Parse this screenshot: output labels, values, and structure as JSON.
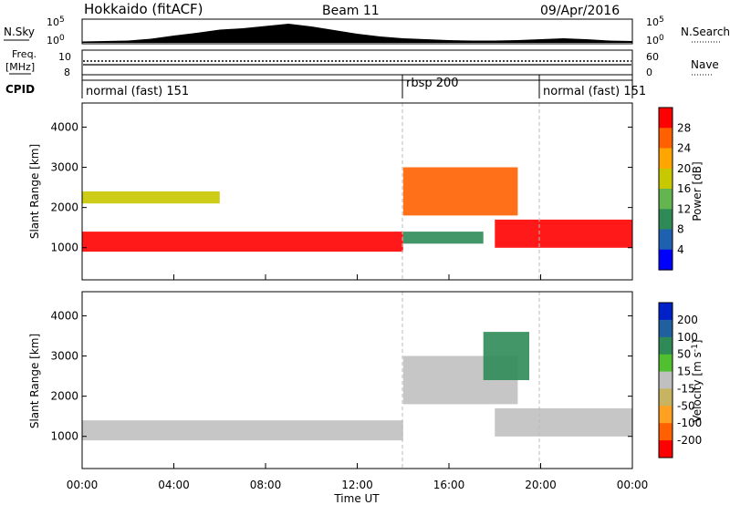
{
  "header": {
    "station": "Hokkaido (fitACF)",
    "beam": "Beam 11",
    "date": "09/Apr/2016"
  },
  "side_labels": {
    "nsky": "N.Sky",
    "freq_line1": "Freq.",
    "freq_line2": "[MHz]",
    "cpid": "CPID",
    "nsearch": "N.Search",
    "nave": "Nave"
  },
  "colors": {
    "power": [
      "#0000ff",
      "#2060b0",
      "#2e8b57",
      "#64b450",
      "#c8c800",
      "#ffa500",
      "#ff6000",
      "#ff0000"
    ],
    "velocity": [
      "#0020c8",
      "#2060a0",
      "#2e8b57",
      "#50c030",
      "#c0c0c0",
      "#c8b460",
      "#ffa020",
      "#ff6000",
      "#ff0000"
    ]
  },
  "chart_data": [
    {
      "type": "line",
      "panel": "nsky",
      "x_tick_labels": [
        "00:00",
        "04:00",
        "08:00",
        "12:00",
        "16:00",
        "20:00",
        "00:00"
      ],
      "xlim": [
        0,
        24
      ],
      "left_ticks": [
        "10^5",
        "10^0"
      ],
      "right_ticks": [
        "10^5",
        "10^0"
      ],
      "scale": "log",
      "values_log10": [
        0.3,
        0.4,
        0.5,
        0.9,
        1.6,
        2.2,
        2.9,
        3.2,
        3.7,
        4.2,
        3.6,
        2.8,
        2.0,
        1.4,
        1.0,
        0.8,
        0.6,
        0.5,
        0.5,
        0.6,
        0.8,
        1.0,
        0.8,
        0.5,
        0.4
      ]
    },
    {
      "type": "line",
      "panel": "frequency",
      "left_ticks": [
        "10",
        "8"
      ],
      "right_ticks": [
        "60",
        "0"
      ],
      "ylim_left": [
        8,
        10
      ],
      "ylim_right": [
        0,
        60
      ]
    },
    {
      "type": "table",
      "panel": "cpid",
      "segments": [
        {
          "label": "normal (fast) 151",
          "start_hour": 0,
          "end_hour": 14
        },
        {
          "label": "rbsp 200",
          "start_hour": 14,
          "end_hour": 20
        },
        {
          "label": "normal (fast) 151",
          "start_hour": 20,
          "end_hour": 24
        }
      ]
    },
    {
      "type": "heatmap",
      "panel": "power",
      "ylabel": "Slant Range [km]",
      "yticks": [
        "1000",
        "2000",
        "3000",
        "4000"
      ],
      "ylim": [
        200,
        4600
      ],
      "xlim": [
        0,
        24
      ],
      "colorbar_label": "Power [dB]",
      "colorbar_ticks": [
        "4",
        "8",
        "12",
        "16",
        "20",
        "24",
        "28"
      ],
      "colorbar_range": [
        0,
        32
      ],
      "features": [
        {
          "start_hour": 0,
          "end_hour": 14,
          "range_km": [
            900,
            1400
          ],
          "level_db": 28
        },
        {
          "start_hour": 0,
          "end_hour": 6,
          "range_km": [
            2100,
            2400
          ],
          "level_db": 16
        },
        {
          "start_hour": 14,
          "end_hour": 19,
          "range_km": [
            1800,
            3000
          ],
          "level_db": 26
        },
        {
          "start_hour": 14,
          "end_hour": 17.5,
          "range_km": [
            1100,
            1400
          ],
          "level_db": 8
        },
        {
          "start_hour": 18,
          "end_hour": 24,
          "range_km": [
            1000,
            1700
          ],
          "level_db": 28
        }
      ]
    },
    {
      "type": "heatmap",
      "panel": "velocity",
      "ylabel": "Slant Range [km]",
      "yticks": [
        "1000",
        "2000",
        "3000",
        "4000"
      ],
      "ylim": [
        200,
        4600
      ],
      "xlabel": "Time UT",
      "colorbar_label": "Velocity [m s^-1]",
      "colorbar_ticks": [
        "200",
        "100",
        "50",
        "15",
        "-15",
        "-50",
        "-100",
        "-200"
      ],
      "features": [
        {
          "start_hour": 0,
          "end_hour": 14,
          "range_km": [
            900,
            1400
          ],
          "velocity_ms": 0
        },
        {
          "start_hour": 14,
          "end_hour": 19,
          "range_km": [
            1800,
            3000
          ],
          "velocity_ms": 0
        },
        {
          "start_hour": 17.5,
          "end_hour": 19.5,
          "range_km": [
            2400,
            3600
          ],
          "velocity_ms": 60
        },
        {
          "start_hour": 18,
          "end_hour": 24,
          "range_km": [
            1000,
            1700
          ],
          "velocity_ms": 0
        }
      ]
    }
  ]
}
